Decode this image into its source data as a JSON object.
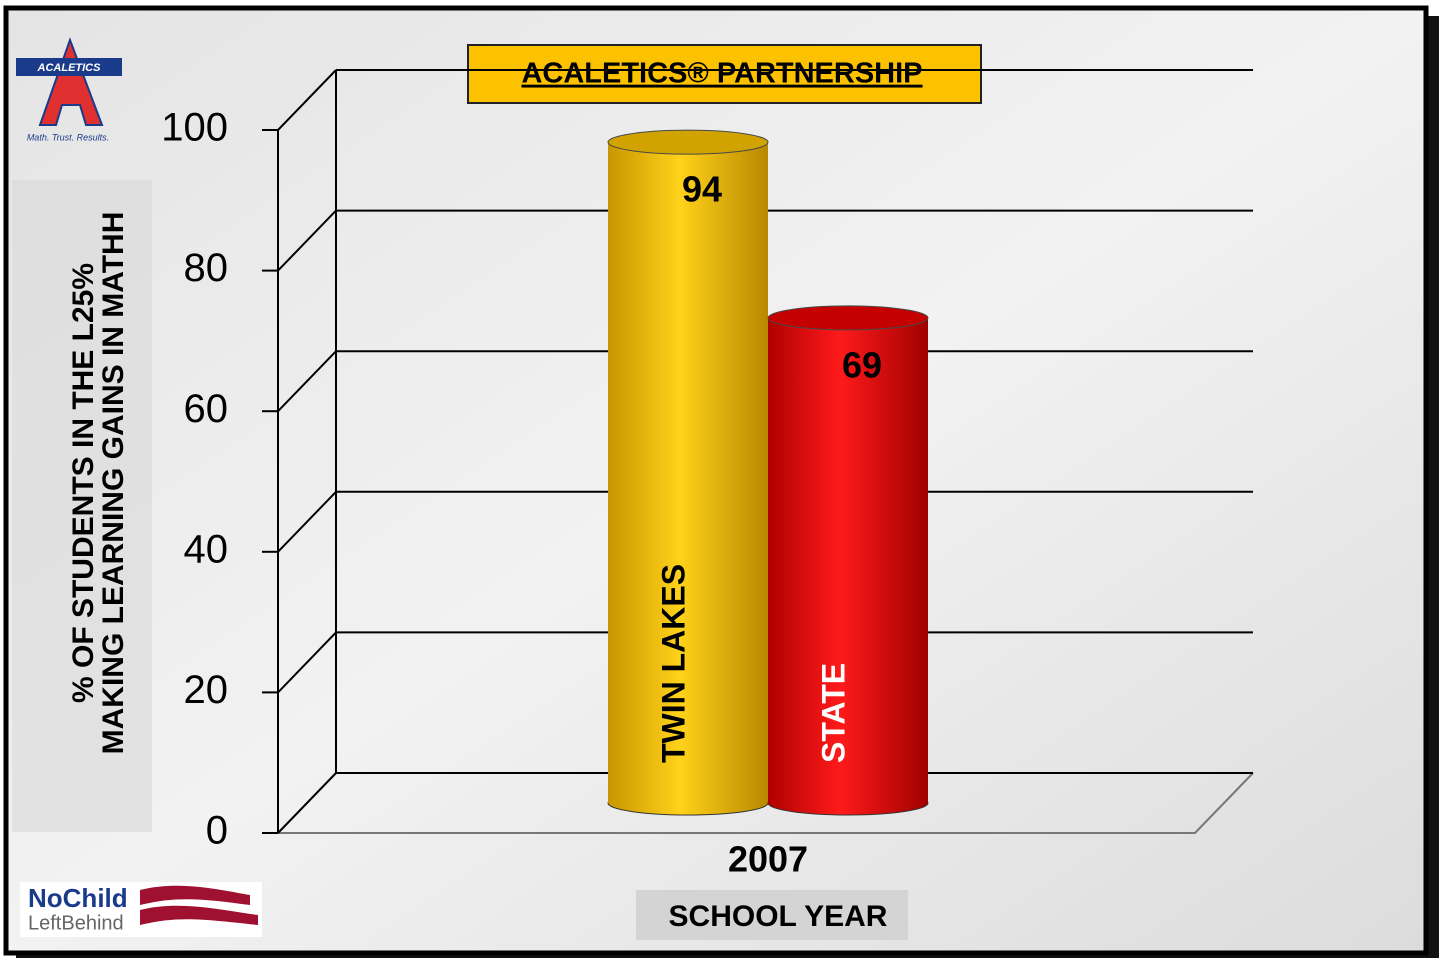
{
  "chart_data": {
    "type": "bar3d",
    "title": "ACALETICS® PARTNERSHIP",
    "ylabel": [
      "% OF STUDENTS IN THE L25%",
      "MAKING LEARNING GAINS IN MATHH"
    ],
    "xlabel": "SCHOOL YEAR",
    "categories": [
      "2007"
    ],
    "series": [
      {
        "name": "TWIN LAKES",
        "color": "#f5c000",
        "values": [
          94
        ]
      },
      {
        "name": "STATE",
        "color": "#e80000",
        "values": [
          69
        ]
      }
    ],
    "ylim": [
      0,
      100
    ],
    "yticks": [
      0,
      20,
      40,
      60,
      80,
      100
    ],
    "grid": true
  },
  "logos": {
    "top": {
      "name": "ACALETICS",
      "tagline": "Math. Trust. Results."
    },
    "bottom": {
      "line1": "NoChild",
      "line2": "LeftBehind"
    }
  }
}
